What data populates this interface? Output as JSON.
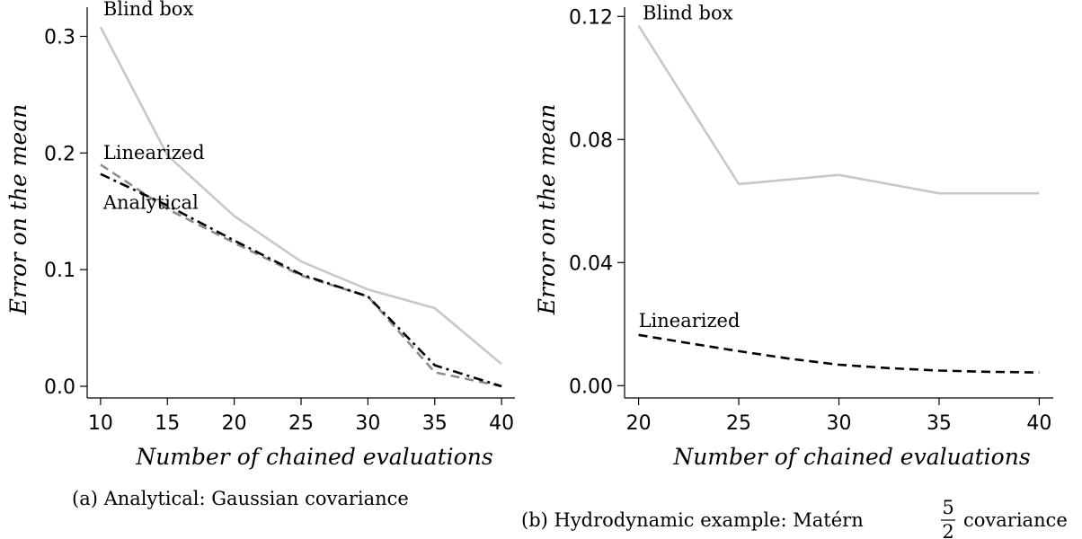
{
  "chart_data": [
    {
      "type": "line",
      "caption": "(a) Analytical: Gaussian covariance",
      "xlabel": "Number of chained evaluations",
      "ylabel": "Error on the mean",
      "xlim": [
        9,
        41
      ],
      "ylim": [
        -0.01,
        0.325
      ],
      "xticks": [
        10,
        15,
        20,
        25,
        30,
        35,
        40
      ],
      "yticks": [
        0.0,
        0.1,
        0.2,
        0.3
      ],
      "ytick_labels": [
        "0.0",
        "0.1",
        "0.2",
        "0.3"
      ],
      "grid": false,
      "series": [
        {
          "name": "Blind box",
          "color": "#c8c8c8",
          "dash": "solid",
          "x": [
            10,
            15,
            20,
            25,
            30,
            35,
            40
          ],
          "y": [
            0.308,
            0.198,
            0.146,
            0.107,
            0.083,
            0.067,
            0.019
          ]
        },
        {
          "name": "Linearized",
          "color": "#8c8c8c",
          "dash": "dashed",
          "x": [
            10,
            15,
            20,
            25,
            30,
            35,
            40
          ],
          "y": [
            0.19,
            0.152,
            0.123,
            0.095,
            0.077,
            0.012,
            0.0
          ]
        },
        {
          "name": "Analytical",
          "color": "#000000",
          "dash": "dashdot",
          "x": [
            10,
            15,
            20,
            25,
            30,
            35,
            40
          ],
          "y": [
            0.182,
            0.155,
            0.125,
            0.096,
            0.077,
            0.018,
            0.0
          ]
        }
      ],
      "annotations": [
        {
          "text": "Blind box",
          "x": 10.2,
          "y": 0.318
        },
        {
          "text": "Linearized",
          "x": 10.2,
          "y": 0.195
        },
        {
          "text": "Analytical",
          "x": 10.2,
          "y": 0.152
        }
      ]
    },
    {
      "type": "line",
      "caption_prefix": "(b) Hydrodynamic example: Matérn",
      "caption_frac_num": "5",
      "caption_frac_den": "2",
      "caption_suffix": "covariance",
      "xlabel": "Number of chained evaluations",
      "ylabel": "Error on the mean",
      "xlim": [
        19.3,
        40.7
      ],
      "ylim": [
        -0.004,
        0.123
      ],
      "xticks": [
        20,
        25,
        30,
        35,
        40
      ],
      "yticks": [
        0.0,
        0.04,
        0.08,
        0.12
      ],
      "ytick_labels": [
        "0.00",
        "0.04",
        "0.08",
        "0.12"
      ],
      "grid": false,
      "series": [
        {
          "name": "Blind box",
          "color": "#c8c8c8",
          "dash": "solid",
          "x": [
            20,
            25,
            30,
            35,
            40
          ],
          "y": [
            0.117,
            0.0655,
            0.0685,
            0.0625,
            0.0625
          ]
        },
        {
          "name": "Linearized",
          "color": "#000000",
          "dash": "dashed",
          "x": [
            20,
            22.5,
            25,
            27.5,
            30,
            32.5,
            35,
            37.5,
            40
          ],
          "y": [
            0.0165,
            0.0138,
            0.0112,
            0.0088,
            0.0068,
            0.0057,
            0.0049,
            0.0045,
            0.0043
          ]
        }
      ],
      "annotations": [
        {
          "text": "Blind box",
          "x": 20.2,
          "y": 0.119
        },
        {
          "text": "Linearized",
          "x": 20.0,
          "y": 0.019
        }
      ]
    }
  ]
}
